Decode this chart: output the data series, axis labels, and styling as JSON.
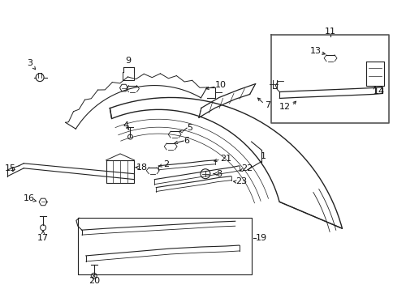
{
  "bg_color": "#ffffff",
  "line_color": "#222222",
  "text_color": "#111111",
  "fig_width": 4.85,
  "fig_height": 3.57,
  "dpi": 100
}
